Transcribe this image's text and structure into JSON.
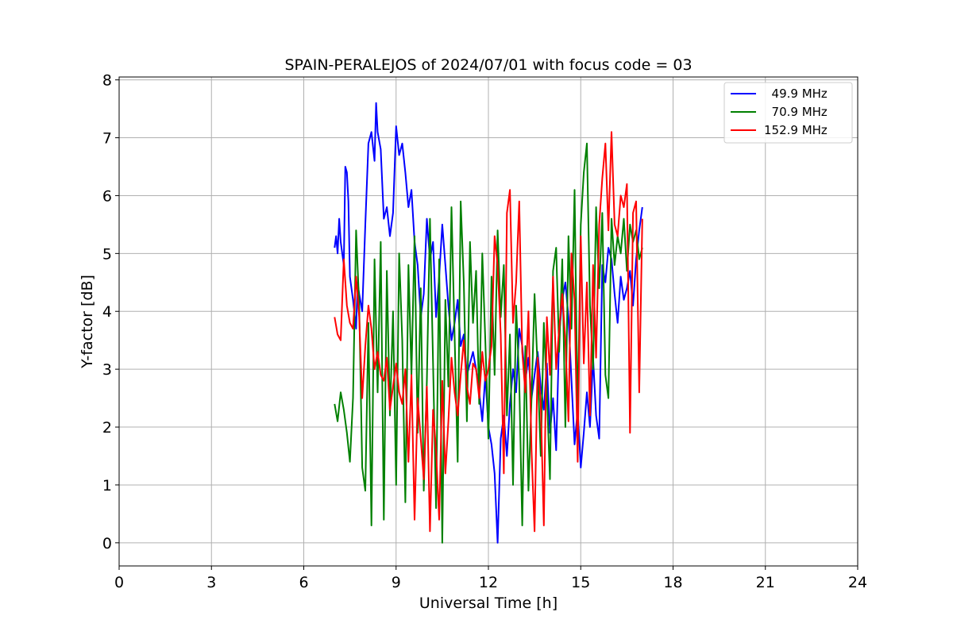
{
  "chart_data": {
    "type": "line",
    "title": "SPAIN-PERALEJOS of 2024/07/01 with focus code = 03",
    "xlabel": "Universal Time [h]",
    "ylabel": "Y-factor [dB]",
    "xlim": [
      0,
      24
    ],
    "ylim": [
      -0.4,
      8.05
    ],
    "xticks": [
      0,
      3,
      6,
      9,
      12,
      15,
      18,
      21,
      24
    ],
    "yticks": [
      0,
      1,
      2,
      3,
      4,
      5,
      6,
      7,
      8
    ],
    "grid": true,
    "legend_position": "top-right",
    "series": [
      {
        "name": "  49.9 MHz",
        "color": "#0000ff",
        "x": [
          7.0,
          7.05,
          7.1,
          7.15,
          7.2,
          7.3,
          7.35,
          7.4,
          7.45,
          7.5,
          7.6,
          7.7,
          7.75,
          7.8,
          7.9,
          8.0,
          8.1,
          8.2,
          8.3,
          8.35,
          8.4,
          8.5,
          8.6,
          8.7,
          8.8,
          8.9,
          9.0,
          9.1,
          9.2,
          9.3,
          9.4,
          9.5,
          9.6,
          9.7,
          9.8,
          9.9,
          10.0,
          10.1,
          10.2,
          10.3,
          10.4,
          10.5,
          10.6,
          10.7,
          10.8,
          10.9,
          11.0,
          11.1,
          11.2,
          11.3,
          11.4,
          11.5,
          11.6,
          11.7,
          11.8,
          11.9,
          12.0,
          12.1,
          12.2,
          12.3,
          12.4,
          12.5,
          12.6,
          12.7,
          12.8,
          12.9,
          13.0,
          13.1,
          13.2,
          13.3,
          13.4,
          13.5,
          13.6,
          13.7,
          13.8,
          13.9,
          14.0,
          14.1,
          14.2,
          14.3,
          14.4,
          14.5,
          14.6,
          14.7,
          14.8,
          14.9,
          15.0,
          15.1,
          15.2,
          15.3,
          15.4,
          15.5,
          15.6,
          15.7,
          15.8,
          15.9,
          16.0,
          16.1,
          16.2,
          16.3,
          16.4,
          16.5,
          16.6,
          16.7,
          16.8,
          16.9,
          17.0
        ],
        "y": [
          5.1,
          5.3,
          5.0,
          5.6,
          5.2,
          4.8,
          6.5,
          6.4,
          5.9,
          4.6,
          4.2,
          3.7,
          4.5,
          4.3,
          4.0,
          5.5,
          6.9,
          7.1,
          6.6,
          7.6,
          7.1,
          6.8,
          5.6,
          5.8,
          5.3,
          5.7,
          7.2,
          6.7,
          6.9,
          6.4,
          5.8,
          6.1,
          5.2,
          4.8,
          3.9,
          4.3,
          5.6,
          4.9,
          5.2,
          3.9,
          4.6,
          5.5,
          4.8,
          4.1,
          3.5,
          3.8,
          4.2,
          3.4,
          3.6,
          2.9,
          3.1,
          3.3,
          3.0,
          2.6,
          2.1,
          2.9,
          2.0,
          1.7,
          1.2,
          0.0,
          1.8,
          2.2,
          1.5,
          2.4,
          3.0,
          2.6,
          3.7,
          3.4,
          2.8,
          3.2,
          2.5,
          2.9,
          3.3,
          2.7,
          2.3,
          3.1,
          1.9,
          2.5,
          1.6,
          3.6,
          4.2,
          4.5,
          3.9,
          2.8,
          1.7,
          2.3,
          1.3,
          1.9,
          2.6,
          2.0,
          3.2,
          2.2,
          1.8,
          4.8,
          4.5,
          5.1,
          4.9,
          4.3,
          3.8,
          4.6,
          4.2,
          4.4,
          4.7,
          4.1,
          4.9,
          5.4,
          5.8
        ]
      },
      {
        "name": "  70.9 MHz",
        "color": "#008000",
        "x": [
          7.0,
          7.1,
          7.2,
          7.3,
          7.4,
          7.5,
          7.6,
          7.7,
          7.8,
          7.9,
          8.0,
          8.1,
          8.2,
          8.3,
          8.4,
          8.5,
          8.6,
          8.7,
          8.8,
          8.9,
          9.0,
          9.1,
          9.2,
          9.3,
          9.4,
          9.5,
          9.6,
          9.7,
          9.8,
          9.9,
          10.0,
          10.1,
          10.2,
          10.3,
          10.4,
          10.5,
          10.6,
          10.7,
          10.8,
          10.9,
          11.0,
          11.1,
          11.2,
          11.3,
          11.4,
          11.5,
          11.6,
          11.7,
          11.8,
          11.9,
          12.0,
          12.1,
          12.2,
          12.3,
          12.4,
          12.5,
          12.6,
          12.7,
          12.8,
          12.9,
          13.0,
          13.1,
          13.2,
          13.3,
          13.4,
          13.5,
          13.6,
          13.7,
          13.8,
          13.9,
          14.0,
          14.1,
          14.2,
          14.3,
          14.4,
          14.5,
          14.6,
          14.7,
          14.8,
          14.9,
          15.0,
          15.1,
          15.2,
          15.3,
          15.4,
          15.5,
          15.6,
          15.7,
          15.8,
          15.9,
          16.0,
          16.1,
          16.2,
          16.3,
          16.4,
          16.5,
          16.6,
          16.7,
          16.8,
          16.9,
          17.0
        ],
        "y": [
          2.4,
          2.1,
          2.6,
          2.3,
          1.9,
          1.4,
          2.5,
          5.4,
          4.1,
          1.3,
          0.9,
          3.8,
          0.3,
          4.9,
          2.6,
          5.2,
          0.4,
          4.7,
          2.2,
          4.0,
          1.0,
          5.0,
          3.5,
          0.7,
          4.8,
          2.9,
          5.3,
          1.9,
          4.4,
          0.9,
          2.8,
          5.6,
          3.1,
          0.6,
          4.9,
          0.0,
          4.2,
          2.7,
          5.8,
          3.6,
          1.4,
          5.9,
          4.5,
          2.1,
          5.2,
          3.8,
          4.7,
          2.4,
          5.0,
          3.5,
          1.8,
          4.6,
          2.9,
          5.4,
          3.9,
          4.8,
          2.2,
          3.6,
          1.0,
          4.1,
          2.8,
          0.3,
          3.4,
          0.9,
          2.5,
          4.3,
          3.0,
          1.5,
          3.8,
          2.6,
          1.1,
          4.7,
          5.1,
          3.3,
          4.9,
          2.0,
          5.3,
          3.7,
          6.1,
          2.1,
          5.5,
          6.4,
          6.9,
          4.1,
          3.0,
          5.8,
          4.4,
          5.7,
          2.9,
          2.5,
          5.6,
          4.8,
          5.3,
          5.0,
          5.6,
          4.7,
          5.5,
          5.2,
          5.4,
          4.9,
          5.1
        ]
      },
      {
        "name": "152.9 MHz",
        "color": "#ff0000",
        "x": [
          7.0,
          7.1,
          7.2,
          7.3,
          7.4,
          7.5,
          7.6,
          7.7,
          7.8,
          7.9,
          8.0,
          8.1,
          8.2,
          8.3,
          8.4,
          8.5,
          8.6,
          8.7,
          8.8,
          8.9,
          9.0,
          9.1,
          9.2,
          9.3,
          9.4,
          9.5,
          9.6,
          9.7,
          9.8,
          9.9,
          10.0,
          10.1,
          10.2,
          10.3,
          10.4,
          10.5,
          10.6,
          10.7,
          10.8,
          10.9,
          11.0,
          11.1,
          11.2,
          11.3,
          11.4,
          11.5,
          11.6,
          11.7,
          11.8,
          11.9,
          12.0,
          12.1,
          12.2,
          12.3,
          12.4,
          12.5,
          12.6,
          12.7,
          12.8,
          12.9,
          13.0,
          13.1,
          13.2,
          13.3,
          13.4,
          13.5,
          13.6,
          13.7,
          13.8,
          13.9,
          14.0,
          14.1,
          14.2,
          14.3,
          14.4,
          14.5,
          14.6,
          14.7,
          14.8,
          14.9,
          15.0,
          15.1,
          15.2,
          15.3,
          15.4,
          15.5,
          15.6,
          15.7,
          15.8,
          15.9,
          16.0,
          16.1,
          16.2,
          16.3,
          16.4,
          16.5,
          16.6,
          16.7,
          16.8,
          16.9,
          17.0
        ],
        "y": [
          3.9,
          3.6,
          3.5,
          4.9,
          4.1,
          3.8,
          3.7,
          4.6,
          3.9,
          2.5,
          3.4,
          4.1,
          3.7,
          3.0,
          3.3,
          2.9,
          2.8,
          3.2,
          2.3,
          2.7,
          3.1,
          2.6,
          2.4,
          3.0,
          1.4,
          2.9,
          0.4,
          2.5,
          1.8,
          1.1,
          2.7,
          0.2,
          2.3,
          1.6,
          0.4,
          2.8,
          1.2,
          2.1,
          3.2,
          2.6,
          2.2,
          2.9,
          3.5,
          2.7,
          2.4,
          3.1,
          3.0,
          2.5,
          3.3,
          2.8,
          3.0,
          3.4,
          5.3,
          4.8,
          3.6,
          1.2,
          5.7,
          6.1,
          3.8,
          4.5,
          5.9,
          3.3,
          2.6,
          4.0,
          1.6,
          0.2,
          3.2,
          2.4,
          0.3,
          3.9,
          2.9,
          4.6,
          3.0,
          3.7,
          4.3,
          3.5,
          2.1,
          5.0,
          4.2,
          1.4,
          5.3,
          3.1,
          4.5,
          2.2,
          4.8,
          3.2,
          5.5,
          6.3,
          6.9,
          5.4,
          7.1,
          5.5,
          5.3,
          6.0,
          5.8,
          6.2,
          1.9,
          5.7,
          5.9,
          2.6,
          5.6
        ]
      }
    ]
  }
}
